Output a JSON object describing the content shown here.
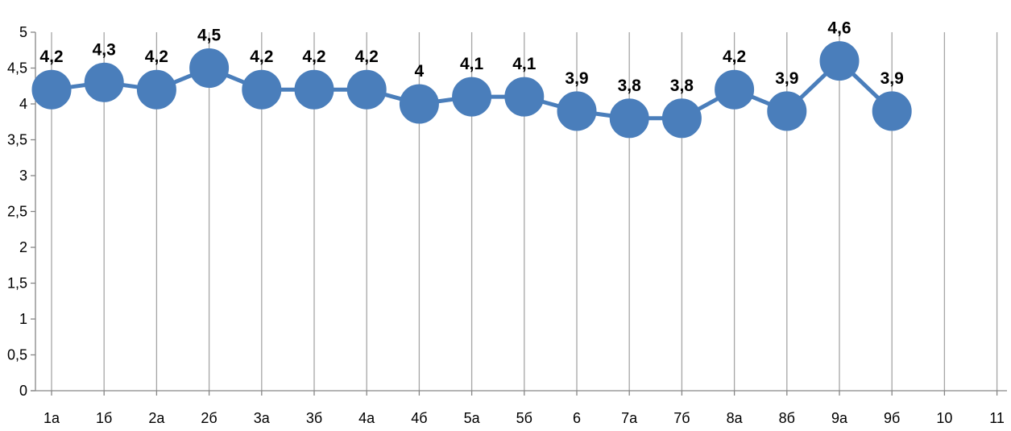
{
  "chart_data": {
    "type": "line",
    "title": "",
    "xlabel": "",
    "ylabel": "",
    "categories": [
      "1а",
      "1б",
      "2а",
      "2б",
      "3а",
      "3б",
      "4а",
      "4б",
      "5а",
      "5б",
      "6",
      "7а",
      "7б",
      "8а",
      "8б",
      "9а",
      "9б",
      "10",
      "11"
    ],
    "series": [
      {
        "values": [
          4.2,
          4.3,
          4.2,
          4.5,
          4.2,
          4.2,
          4.2,
          4.0,
          4.1,
          4.1,
          3.9,
          3.8,
          3.8,
          4.2,
          3.9,
          4.6,
          3.9,
          null,
          null
        ],
        "data_labels": [
          "4,2",
          "4,3",
          "4,2",
          "4,5",
          "4,2",
          "4,2",
          "4,2",
          "4",
          "4,1",
          "4,1",
          "3,9",
          "3,8",
          "3,8",
          "4,2",
          "3,9",
          "4,6",
          "3,9",
          "",
          ""
        ],
        "color": "#4a7ebb"
      }
    ],
    "y_ticks": [
      "0",
      "0,5",
      "1",
      "1,5",
      "2",
      "2,5",
      "3",
      "3,5",
      "4",
      "4,5",
      "5"
    ],
    "ylim": [
      0,
      5
    ],
    "grid": "vertical",
    "legend": "none",
    "colors": {
      "gridline": "#a6a6a6",
      "axis": "#868686"
    }
  }
}
